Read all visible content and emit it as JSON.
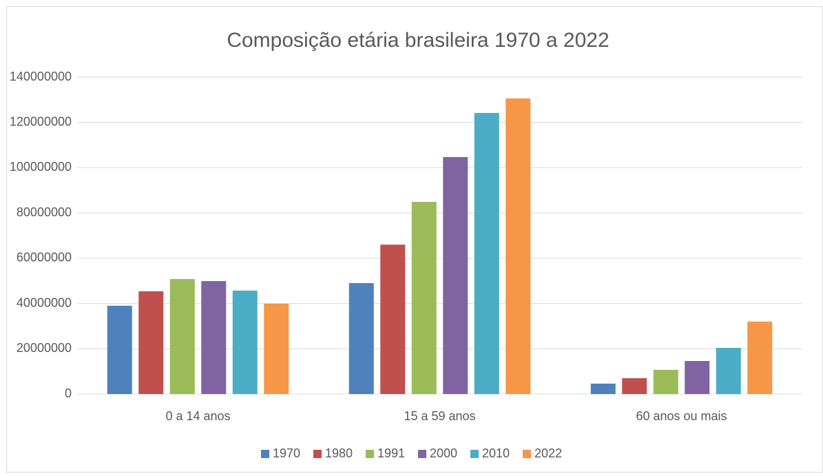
{
  "chart_data": {
    "type": "bar",
    "title": "Composição etária brasileira 1970 a 2022",
    "categories": [
      "0 a 14 anos",
      "15 a 59 anos",
      "60 anos ou mais"
    ],
    "series": [
      {
        "name": "1970",
        "color": "#4f81bd",
        "values": [
          39000000,
          49000000,
          4600000
        ]
      },
      {
        "name": "1980",
        "color": "#c0504d",
        "values": [
          45400000,
          66000000,
          7000000
        ]
      },
      {
        "name": "1991",
        "color": "#9bbb59",
        "values": [
          50800000,
          84900000,
          10700000
        ]
      },
      {
        "name": "2000",
        "color": "#8064a2",
        "values": [
          49900000,
          104700000,
          14600000
        ]
      },
      {
        "name": "2010",
        "color": "#4bacc6",
        "values": [
          45700000,
          124200000,
          20400000
        ]
      },
      {
        "name": "2022",
        "color": "#f79646",
        "values": [
          39900000,
          130600000,
          32000000
        ]
      }
    ],
    "ylim": [
      0,
      140000000
    ],
    "yticks": [
      0,
      20000000,
      40000000,
      60000000,
      80000000,
      100000000,
      120000000,
      140000000
    ],
    "grid": true,
    "legend": "bottom"
  }
}
